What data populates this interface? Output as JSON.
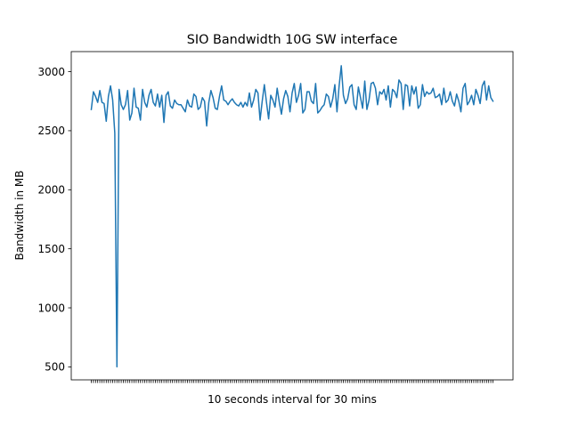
{
  "chart_data": {
    "type": "line",
    "title": "SIO Bandwidth 10G SW interface",
    "xlabel": "10 seconds interval for 30 mins",
    "ylabel": "Bandwidth in MB",
    "ylim": [
      390,
      3170
    ],
    "yticks": [
      500,
      1000,
      1500,
      2000,
      2500,
      3000
    ],
    "xtick_labels_visible": false,
    "grid": false,
    "legend": "none",
    "line_color": "#1f77b4",
    "series": [
      {
        "values": [
          2680,
          2830,
          2790,
          2740,
          2840,
          2740,
          2730,
          2580,
          2790,
          2880,
          2760,
          2480,
          500,
          2850,
          2720,
          2680,
          2720,
          2840,
          2590,
          2650,
          2860,
          2700,
          2690,
          2590,
          2850,
          2740,
          2700,
          2800,
          2850,
          2740,
          2710,
          2810,
          2700,
          2800,
          2570,
          2800,
          2830,
          2710,
          2690,
          2760,
          2730,
          2720,
          2720,
          2690,
          2660,
          2760,
          2710,
          2700,
          2810,
          2790,
          2680,
          2700,
          2780,
          2750,
          2540,
          2740,
          2840,
          2780,
          2690,
          2680,
          2790,
          2880,
          2760,
          2750,
          2720,
          2750,
          2770,
          2740,
          2720,
          2710,
          2740,
          2700,
          2740,
          2710,
          2820,
          2700,
          2760,
          2850,
          2820,
          2590,
          2750,
          2890,
          2740,
          2600,
          2800,
          2760,
          2700,
          2860,
          2740,
          2640,
          2770,
          2840,
          2790,
          2660,
          2820,
          2900,
          2740,
          2800,
          2900,
          2650,
          2680,
          2830,
          2830,
          2750,
          2730,
          2900,
          2650,
          2670,
          2700,
          2720,
          2810,
          2790,
          2700,
          2770,
          2890,
          2660,
          2880,
          3050,
          2800,
          2730,
          2770,
          2870,
          2890,
          2720,
          2680,
          2870,
          2780,
          2690,
          2920,
          2680,
          2760,
          2900,
          2910,
          2860,
          2720,
          2830,
          2810,
          2850,
          2760,
          2880,
          2700,
          2850,
          2830,
          2780,
          2930,
          2900,
          2680,
          2890,
          2880,
          2710,
          2880,
          2810,
          2870,
          2690,
          2720,
          2890,
          2790,
          2830,
          2810,
          2820,
          2860,
          2780,
          2790,
          2810,
          2720,
          2860,
          2740,
          2760,
          2830,
          2750,
          2710,
          2810,
          2750,
          2660,
          2860,
          2900,
          2720,
          2750,
          2800,
          2720,
          2850,
          2800,
          2730,
          2880,
          2920,
          2760,
          2880,
          2780,
          2750
        ]
      }
    ]
  }
}
